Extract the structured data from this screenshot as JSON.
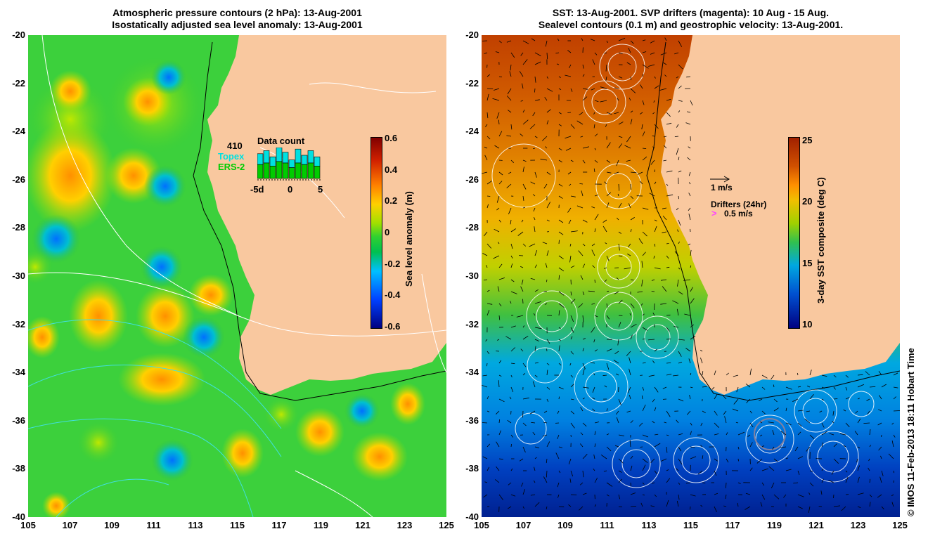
{
  "left_panel": {
    "title_line1": "Atmospheric pressure contours (2 hPa): 13-Aug-2001",
    "title_line2": "Isostatically adjusted sea level anomaly: 13-Aug-2001",
    "colorbar_title": "Sea level anomaly (m)",
    "colorbar_ticks": [
      "0.6",
      "0.4",
      "0.2",
      "0",
      "-0.2",
      "-0.4",
      "-0.6"
    ],
    "data_count": {
      "title": "Data count",
      "count": "410",
      "topex_label": "Topex",
      "ers_label": "ERS-2",
      "axis_labels": [
        "-5d",
        "0",
        "5"
      ],
      "topex_color": "#00e0e0",
      "ers_color": "#00cc00",
      "bars": [
        0.8,
        0.9,
        0.7,
        1.0,
        0.85,
        0.6,
        0.95,
        0.75,
        0.9,
        0.7
      ],
      "green_part": [
        0.45,
        0.5,
        0.4,
        0.55,
        0.5,
        0.35,
        0.5,
        0.45,
        0.5,
        0.4
      ]
    }
  },
  "right_panel": {
    "title_line1": "SST: 13-Aug-2001. SVP drifters (magenta): 10 Aug - 15 Aug.",
    "title_line2": "Sealevel contours (0.1 m) and geostrophic velocity: 13-Aug-2001.",
    "colorbar_title": "3-day SST composite (deg C)",
    "colorbar_ticks": [
      "25",
      "20",
      "15",
      "10"
    ],
    "velocity_scale": "1 m/s",
    "drifters_label": "Drifters (24hr)",
    "drifter_scale": "0.5 m/s",
    "drifter_color": "#ff44ff"
  },
  "axes": {
    "lat_labels": [
      "-20",
      "-22",
      "-24",
      "-26",
      "-28",
      "-30",
      "-32",
      "-34",
      "-36",
      "-38",
      "-40"
    ],
    "lon_labels": [
      "105",
      "107",
      "109",
      "111",
      "113",
      "115",
      "117",
      "119",
      "121",
      "123",
      "125"
    ]
  },
  "copyright": "© IMOS 11-Feb-2013 18:11 Hobart Time",
  "colors": {
    "land": "#f9c89f",
    "sla_scale": [
      "#00007f",
      "#0040ff",
      "#00c0ff",
      "#00c050",
      "#30d030",
      "#a0e000",
      "#ffd000",
      "#ff8000",
      "#d02000",
      "#7f0000"
    ],
    "sst_scale": [
      "#000080",
      "#0030c0",
      "#00a0ff",
      "#20c060",
      "#50d020",
      "#e0d000",
      "#ff9000",
      "#d05000",
      "#a02000"
    ]
  }
}
